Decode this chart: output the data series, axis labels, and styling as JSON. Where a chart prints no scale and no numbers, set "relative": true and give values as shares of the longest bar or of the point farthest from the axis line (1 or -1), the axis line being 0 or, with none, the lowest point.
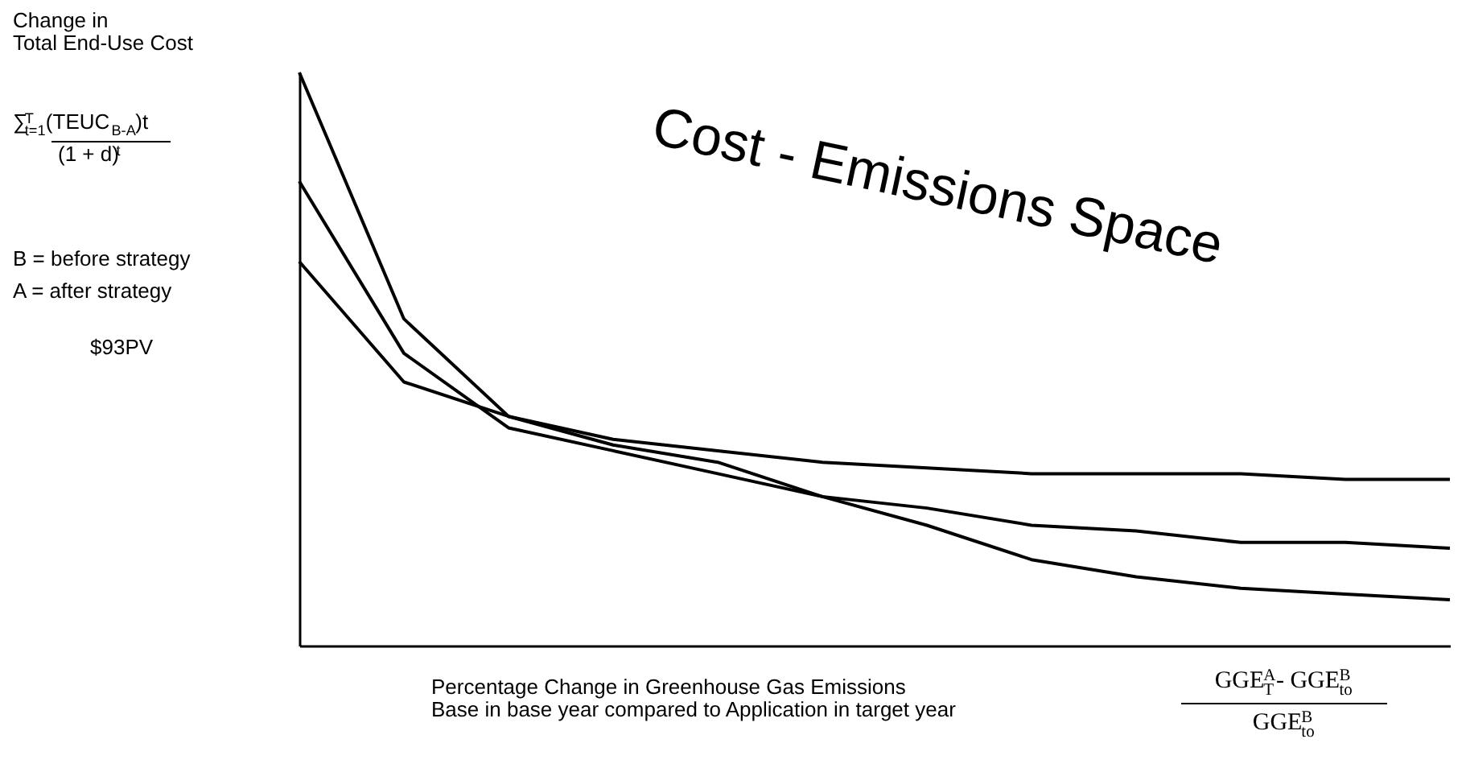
{
  "chart_data": {
    "type": "line",
    "relative": true,
    "xlabel": "Percentage Change in Greenhouse Gas Emissions\nBase in base year compared to Application in target year",
    "categories": [
      null,
      null,
      null,
      null,
      null,
      null,
      null,
      null,
      null,
      null,
      null,
      null
    ],
    "series": [
      {
        "color": "#000000",
        "values": [
          1.0,
          0.57,
          0.4,
          0.35,
          0.32,
          0.26,
          0.21,
          0.15,
          0.12,
          0.1,
          0.09,
          0.08
        ]
      },
      {
        "color": "#000000",
        "values": [
          0.81,
          0.51,
          0.38,
          0.34,
          0.3,
          0.26,
          0.24,
          0.21,
          0.2,
          0.18,
          0.18,
          0.17
        ]
      },
      {
        "color": "#000000",
        "values": [
          0.67,
          0.46,
          0.4,
          0.36,
          0.34,
          0.32,
          0.31,
          0.3,
          0.3,
          0.3,
          0.29,
          0.29
        ]
      }
    ],
    "annotations": [
      "Change in\nTotal End-Use Cost",
      "∑$_{t=1}$$^{T}$ (TEUC$_{B-A}$)t",
      "(1 + d)$^{t}$",
      "B = before strategy",
      "A = after strategy",
      "$93PV",
      "Cost - Emissions Space",
      "GGE$^{A}$$_{T}$- GGE$^{B}$$_{to}$",
      "GGE$^{B}$$_{to}$"
    ],
    "marker": "none",
    "line_style": "solid",
    "grid": false
  }
}
